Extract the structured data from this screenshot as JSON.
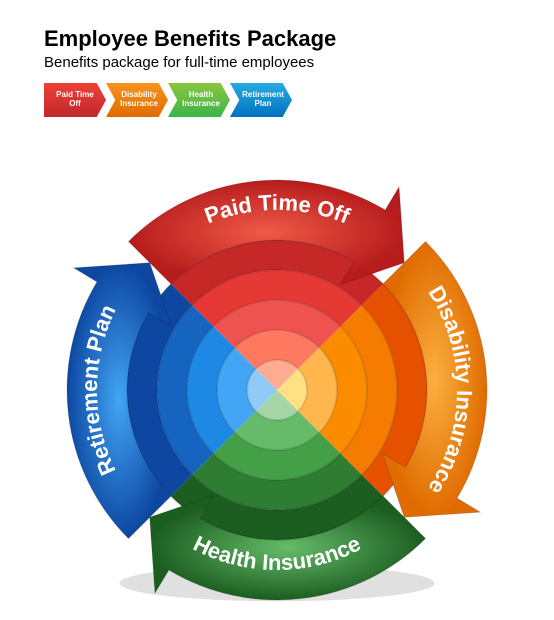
{
  "title": "Employee Benefits Package",
  "subtitle": "Benefits package for full-time employees",
  "legend": [
    {
      "label": "Paid Time Off",
      "bg": "linear-gradient(180deg,#ef4136 0%,#c1272d 100%)"
    },
    {
      "label": "Disability Insurance",
      "bg": "linear-gradient(180deg,#f7931e 0%,#e06b00 100%)"
    },
    {
      "label": "Health Insurance",
      "bg": "linear-gradient(180deg,#8cc63f 0%,#39b54a 100%)"
    },
    {
      "label": "Retirement Plan",
      "bg": "linear-gradient(180deg,#29abe2 0%,#0071bc 100%)"
    }
  ],
  "wheel": {
    "type": "circular-arrow-infographic",
    "background_color": "#ffffff",
    "outer_radius": 210,
    "inner_radius": 150,
    "arrowhead_deg": 14,
    "label_fontsize": 22,
    "label_color": "#ffffff",
    "segments": [
      {
        "name": "Paid Time Off",
        "start_deg": -45,
        "sweep_deg": 90,
        "outer_light": "#ef5a47",
        "outer_dark": "#b71c1c",
        "rings": [
          "#c62828",
          "#e53935",
          "#ef5350",
          "#ff7961",
          "#ffab91"
        ]
      },
      {
        "name": "Disability Insurance",
        "start_deg": 45,
        "sweep_deg": 90,
        "outer_light": "#fbb040",
        "outer_dark": "#e06b00",
        "rings": [
          "#e65100",
          "#f57c00",
          "#fb8c00",
          "#ffb74d",
          "#ffe082"
        ]
      },
      {
        "name": "Health Insurance",
        "start_deg": 135,
        "sweep_deg": 90,
        "outer_light": "#66bb6a",
        "outer_dark": "#1b5e20",
        "rings": [
          "#1b5e20",
          "#2e7d32",
          "#43a047",
          "#66bb6a",
          "#a5d6a7"
        ]
      },
      {
        "name": "Retirement Plan",
        "start_deg": 225,
        "sweep_deg": 90,
        "outer_light": "#42a5f5",
        "outer_dark": "#0d47a1",
        "rings": [
          "#0d47a1",
          "#1565c0",
          "#1e88e5",
          "#42a5f5",
          "#90caf9"
        ]
      }
    ],
    "ring_count": 5,
    "concentric_shade": "rgba(0,0,0,0.12)"
  }
}
